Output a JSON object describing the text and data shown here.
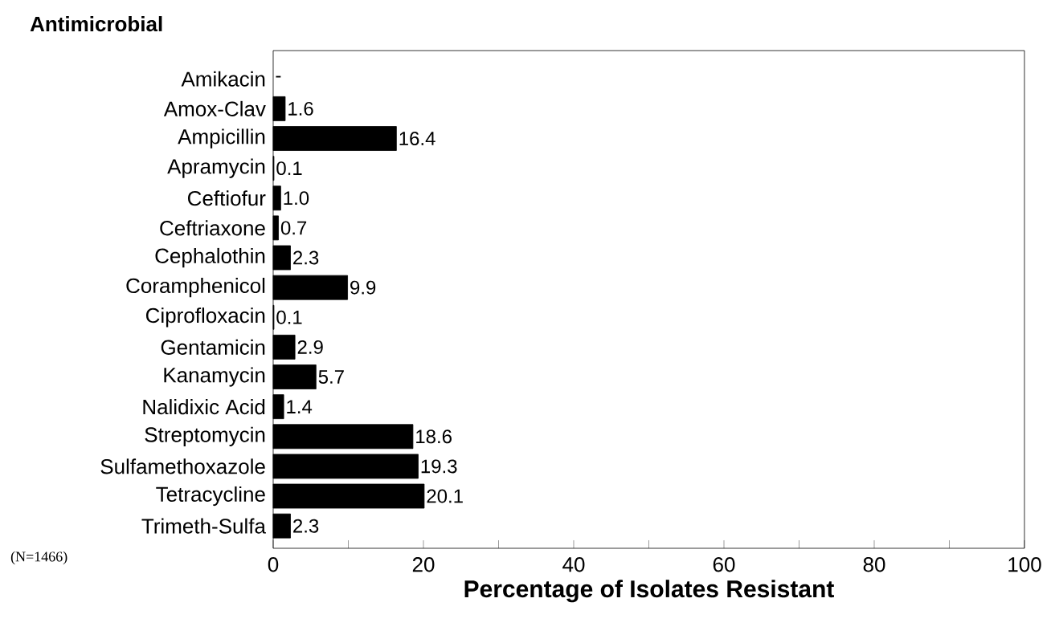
{
  "chart_data": {
    "type": "bar",
    "orientation": "horizontal",
    "ylabel": "Antimicrobial",
    "xlabel": "Percentage of Isolates Resistant",
    "categories": [
      "Amikacin",
      "Amox-Clav",
      "Ampicillin",
      "Apramycin",
      "Ceftiofur",
      "Ceftriaxone",
      "Cephalothin",
      "Coramphenicol",
      "Ciprofloxacin",
      "Gentamicin",
      "Kanamycin",
      "Nalidixic Acid",
      "Streptomycin",
      "Sulfamethoxazole",
      "Tetracycline",
      "Trimeth-Sulfa"
    ],
    "values": [
      null,
      1.6,
      16.4,
      0.1,
      1.0,
      0.7,
      2.3,
      9.9,
      0.1,
      2.9,
      5.7,
      1.4,
      18.6,
      19.3,
      20.1,
      2.3
    ],
    "value_labels": [
      "-",
      "1.6",
      "16.4",
      "0.1",
      "1.0",
      "0.7",
      "2.3",
      "9.9",
      "0.1",
      "2.9",
      "5.7",
      "1.4",
      "18.6",
      "19.3",
      "20.1",
      "2.3"
    ],
    "color": "#000000",
    "xlim": [
      0,
      100
    ],
    "xticks": [
      0,
      {
        "value": 10,
        "label": null
      },
      20,
      {
        "value": 30,
        "label": null
      },
      40,
      {
        "value": 50,
        "label": null
      },
      60,
      {
        "value": 70,
        "label": null
      },
      80,
      {
        "value": 90,
        "label": null
      },
      100
    ],
    "annotations": [
      "(N=1466)"
    ]
  }
}
